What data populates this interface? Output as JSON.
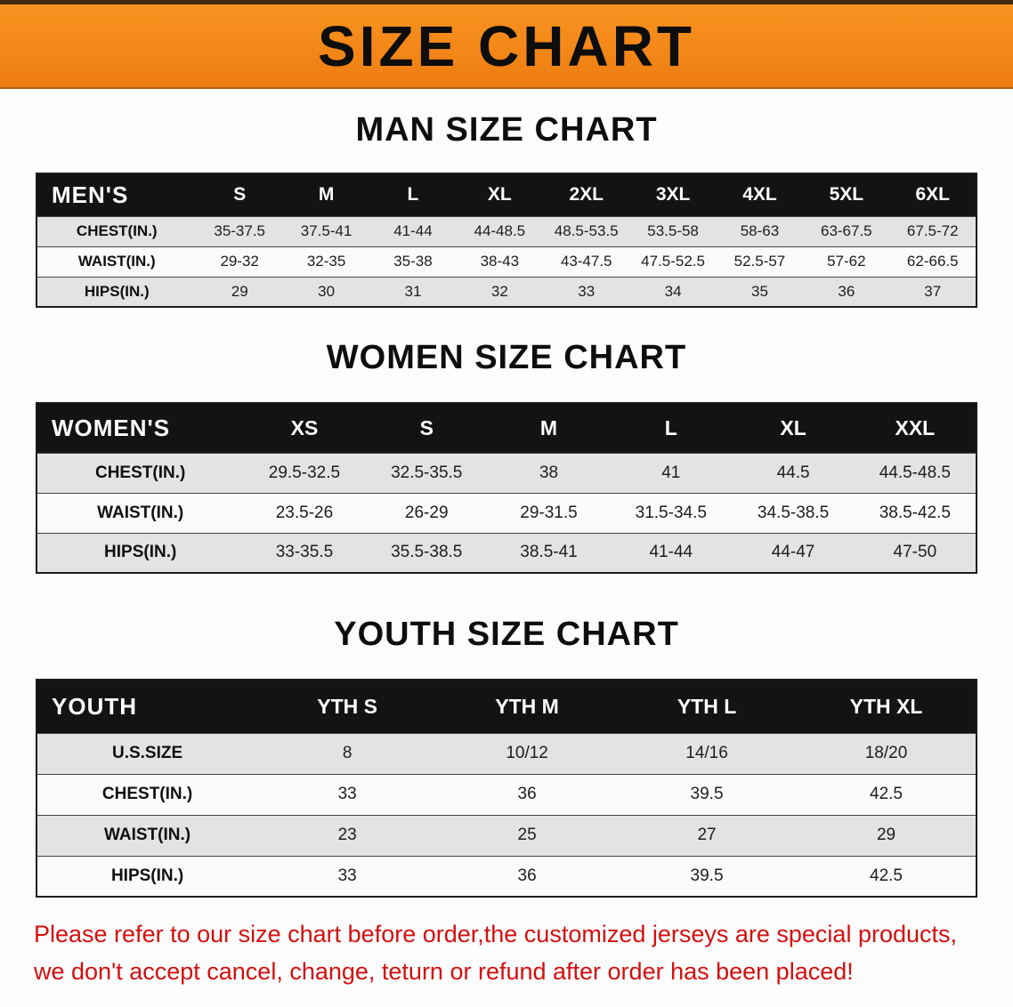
{
  "banner": {
    "title": "SIZE CHART"
  },
  "colors": {
    "banner_orange": "#f5831d",
    "header_black": "#131313",
    "stripe_gray": "#e3e3e3",
    "disclaimer_red": "#d40f0f"
  },
  "sections": [
    {
      "heading": "MAN SIZE CHART",
      "table": {
        "header": [
          "MEN'S",
          "S",
          "M",
          "L",
          "XL",
          "2XL",
          "3XL",
          "4XL",
          "5XL",
          "6XL"
        ],
        "rows": [
          {
            "label": "CHEST(IN.)",
            "values": [
              "35-37.5",
              "37.5-41",
              "41-44",
              "44-48.5",
              "48.5-53.5",
              "53.5-58",
              "58-63",
              "63-67.5",
              "67.5-72"
            ]
          },
          {
            "label": "WAIST(IN.)",
            "values": [
              "29-32",
              "32-35",
              "35-38",
              "38-43",
              "43-47.5",
              "47.5-52.5",
              "52.5-57",
              "57-62",
              "62-66.5"
            ]
          },
          {
            "label": "HIPS(IN.)",
            "values": [
              "29",
              "30",
              "31",
              "32",
              "33",
              "34",
              "35",
              "36",
              "37"
            ]
          }
        ]
      }
    },
    {
      "heading": "WOMEN SIZE CHART",
      "table": {
        "header": [
          "WOMEN'S",
          "XS",
          "S",
          "M",
          "L",
          "XL",
          "XXL"
        ],
        "rows": [
          {
            "label": "CHEST(IN.)",
            "values": [
              "29.5-32.5",
              "32.5-35.5",
              "38",
              "41",
              "44.5",
              "44.5-48.5"
            ]
          },
          {
            "label": "WAIST(IN.)",
            "values": [
              "23.5-26",
              "26-29",
              "29-31.5",
              "31.5-34.5",
              "34.5-38.5",
              "38.5-42.5"
            ]
          },
          {
            "label": "HIPS(IN.)",
            "values": [
              "33-35.5",
              "35.5-38.5",
              "38.5-41",
              "41-44",
              "44-47",
              "47-50"
            ]
          }
        ]
      }
    },
    {
      "heading": "YOUTH SIZE CHART",
      "table": {
        "header": [
          "YOUTH",
          "YTH S",
          "YTH M",
          "YTH L",
          "YTH XL"
        ],
        "rows": [
          {
            "label": "U.S.SIZE",
            "values": [
              "8",
              "10/12",
              "14/16",
              "18/20"
            ]
          },
          {
            "label": "CHEST(IN.)",
            "values": [
              "33",
              "36",
              "39.5",
              "42.5"
            ]
          },
          {
            "label": "WAIST(IN.)",
            "values": [
              "23",
              "25",
              "27",
              "29"
            ]
          },
          {
            "label": "HIPS(IN.)",
            "values": [
              "33",
              "36",
              "39.5",
              "42.5"
            ]
          }
        ]
      }
    }
  ],
  "footer": {
    "line1": "Please refer to our size chart before order,the customized jerseys are special products,",
    "line2": "we don't accept cancel, change, teturn or refund after order has been placed!"
  }
}
